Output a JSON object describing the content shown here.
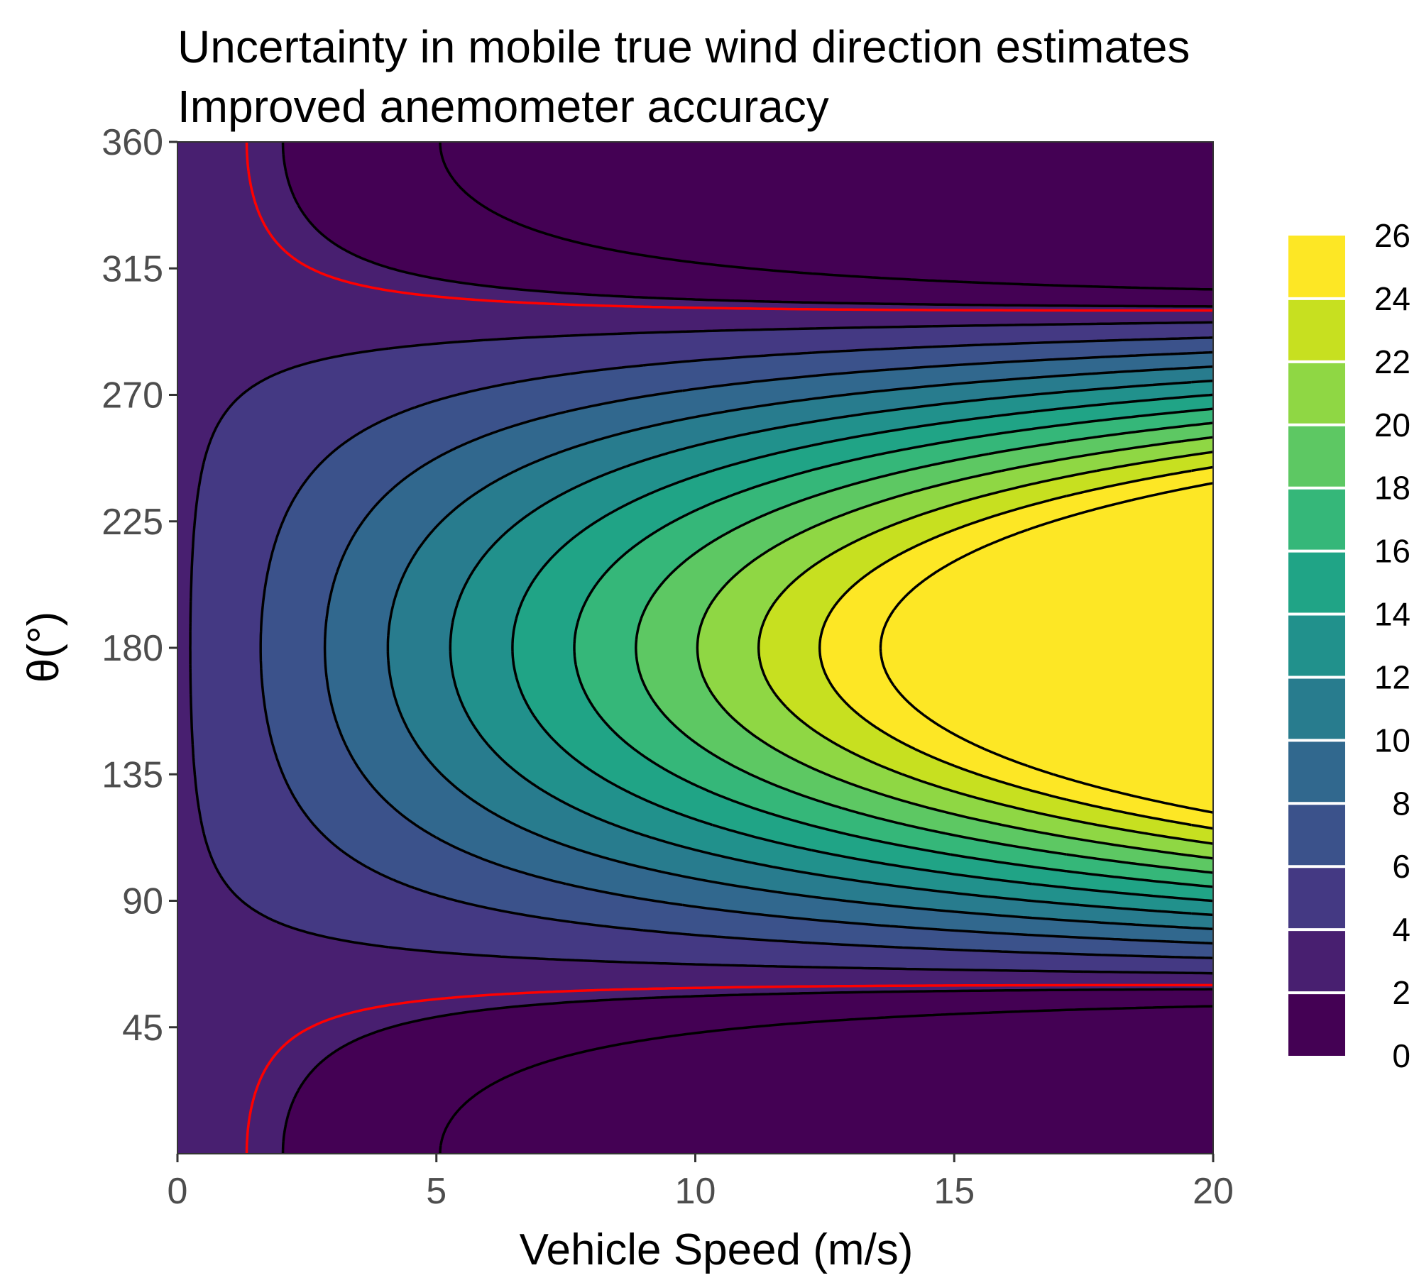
{
  "chart_data": {
    "type": "contour",
    "title_lines": [
      "Uncertainty in mobile true wind direction estimates",
      "Improved anemometer accuracy"
    ],
    "xlabel": "Vehicle Speed (m/s)",
    "ylabel": "θ(°)",
    "xlim": [
      0,
      20
    ],
    "ylim": [
      0,
      360
    ],
    "x_ticks": [
      0,
      5,
      10,
      15,
      20
    ],
    "y_ticks": [
      45,
      90,
      135,
      180,
      225,
      270,
      315,
      360
    ],
    "x_tick_labels": [
      "0",
      "5",
      "10",
      "15",
      "20"
    ],
    "y_tick_labels": [
      "45",
      "90",
      "135",
      "180",
      "225",
      "270",
      "315",
      "360"
    ],
    "contour_levels": [
      0,
      2,
      4,
      6,
      8,
      10,
      12,
      14,
      16,
      18,
      20,
      22,
      24,
      26
    ],
    "legend": {
      "position": "right",
      "labels": [
        "0",
        "2",
        "4",
        "6",
        "8",
        "10",
        "12",
        "14",
        "16",
        "18",
        "20",
        "22",
        "24",
        "26"
      ],
      "colors": [
        "#440154",
        "#481F70",
        "#443983",
        "#3B528B",
        "#31688E",
        "#287C8E",
        "#21918C",
        "#20A486",
        "#35B779",
        "#5DC863",
        "#8FD744",
        "#C7E020",
        "#FDE725"
      ]
    },
    "highlight_contour": {
      "level": 2.5,
      "color": "#FF0000"
    },
    "line_color": "#000000",
    "field_description": {
      "min_region": {
        "x": 5,
        "theta": [
          0,
          25,
          335,
          360
        ],
        "value": 0.5
      },
      "max_region": {
        "x": 20,
        "theta": 180,
        "value": 26
      }
    },
    "grid": false
  }
}
